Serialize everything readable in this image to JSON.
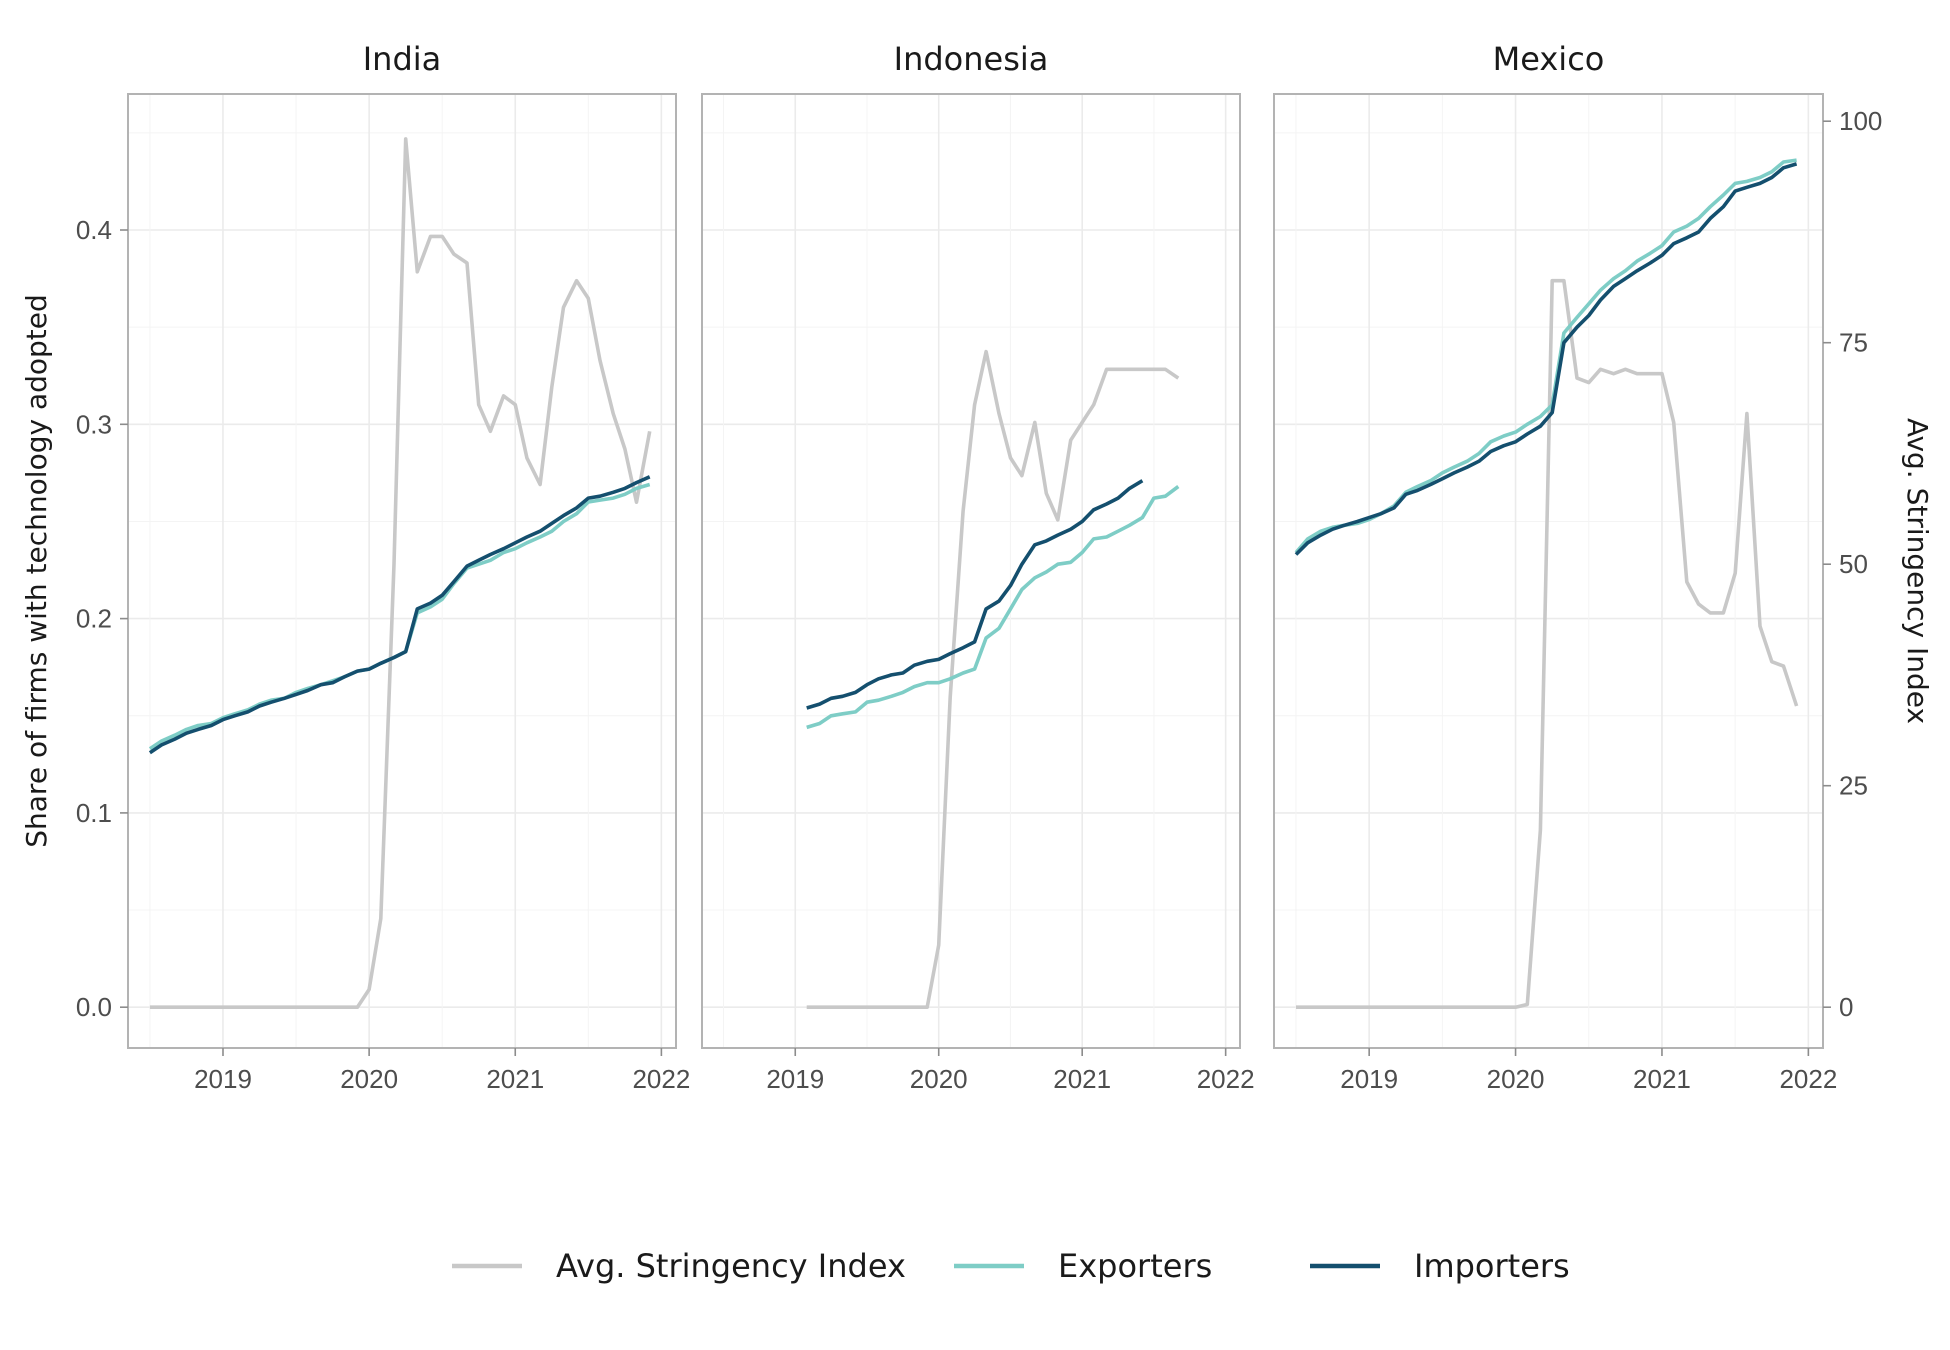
{
  "chart_data": {
    "type": "line",
    "y_left_label": "Share of firms with technology adopted",
    "y_right_label": "Avg. Stringency Index",
    "y_left_range": [
      -0.021,
      0.47
    ],
    "y_left_ticks": [
      "0.0",
      "0.1",
      "0.2",
      "0.3",
      "0.4"
    ],
    "y_right_ticks": [
      "0",
      "25",
      "50",
      "75",
      "100"
    ],
    "y_right_max_for_left": 0.456,
    "x_range": [
      2018.35,
      2022.1
    ],
    "x_ticks": [
      "2019",
      "2020",
      "2021",
      "2022"
    ],
    "grid": true,
    "legend_position": "bottom",
    "colors": {
      "Avg. Stringency Index": "#c8c8c8",
      "Exporters": "#7ecdc6",
      "Importers": "#144f6e"
    },
    "legend": [
      {
        "name": "Avg. Stringency Index",
        "color": "#c8c8c8"
      },
      {
        "name": "Exporters",
        "color": "#7ecdc6"
      },
      {
        "name": "Importers",
        "color": "#144f6e"
      }
    ],
    "panels": [
      {
        "title": "India",
        "series": [
          {
            "name": "Avg. Stringency Index",
            "axis": "right",
            "x": [
              2018.5,
              2019.0,
              2019.5,
              2019.92,
              2020.0,
              2020.08,
              2020.17,
              2020.25,
              2020.33,
              2020.42,
              2020.5,
              2020.58,
              2020.67,
              2020.75,
              2020.83,
              2020.92,
              2021.0,
              2021.08,
              2021.17,
              2021.25,
              2021.33,
              2021.42,
              2021.5,
              2021.58,
              2021.67,
              2021.75,
              2021.83,
              2021.92
            ],
            "y": [
              0,
              0,
              0,
              0,
              2,
              10,
              50,
              98,
              83,
              87,
              87,
              85,
              84,
              68,
              65,
              69,
              68,
              62,
              59,
              70,
              79,
              82,
              80,
              73,
              67,
              63,
              57,
              65
            ]
          },
          {
            "name": "Exporters",
            "axis": "left",
            "x": [
              2018.5,
              2018.58,
              2018.67,
              2018.75,
              2018.83,
              2018.92,
              2019.0,
              2019.08,
              2019.17,
              2019.25,
              2019.33,
              2019.42,
              2019.5,
              2019.58,
              2019.67,
              2019.75,
              2019.83,
              2019.92,
              2020.0,
              2020.08,
              2020.17,
              2020.25,
              2020.33,
              2020.42,
              2020.5,
              2020.58,
              2020.67,
              2020.75,
              2020.83,
              2020.92,
              2021.0,
              2021.08,
              2021.17,
              2021.25,
              2021.33,
              2021.42,
              2021.5,
              2021.58,
              2021.67,
              2021.75,
              2021.83,
              2021.92
            ],
            "y": [
              0.133,
              0.137,
              0.14,
              0.143,
              0.145,
              0.146,
              0.149,
              0.151,
              0.153,
              0.156,
              0.158,
              0.159,
              0.162,
              0.164,
              0.166,
              0.168,
              0.17,
              0.173,
              0.174,
              0.177,
              0.18,
              0.183,
              0.203,
              0.206,
              0.21,
              0.218,
              0.226,
              0.228,
              0.23,
              0.234,
              0.236,
              0.239,
              0.242,
              0.245,
              0.25,
              0.254,
              0.26,
              0.261,
              0.262,
              0.264,
              0.267,
              0.269
            ]
          },
          {
            "name": "Importers",
            "axis": "left",
            "x": [
              2018.5,
              2018.58,
              2018.67,
              2018.75,
              2018.83,
              2018.92,
              2019.0,
              2019.08,
              2019.17,
              2019.25,
              2019.33,
              2019.42,
              2019.5,
              2019.58,
              2019.67,
              2019.75,
              2019.83,
              2019.92,
              2020.0,
              2020.08,
              2020.17,
              2020.25,
              2020.33,
              2020.42,
              2020.5,
              2020.58,
              2020.67,
              2020.75,
              2020.83,
              2020.92,
              2021.0,
              2021.08,
              2021.17,
              2021.25,
              2021.33,
              2021.42,
              2021.5,
              2021.58,
              2021.67,
              2021.75,
              2021.83,
              2021.92
            ],
            "y": [
              0.131,
              0.135,
              0.138,
              0.141,
              0.143,
              0.145,
              0.148,
              0.15,
              0.152,
              0.155,
              0.157,
              0.159,
              0.161,
              0.163,
              0.166,
              0.167,
              0.17,
              0.173,
              0.174,
              0.177,
              0.18,
              0.183,
              0.205,
              0.208,
              0.212,
              0.219,
              0.227,
              0.23,
              0.233,
              0.236,
              0.239,
              0.242,
              0.245,
              0.249,
              0.253,
              0.257,
              0.262,
              0.263,
              0.265,
              0.267,
              0.27,
              0.273
            ]
          }
        ]
      },
      {
        "title": "Indonesia",
        "series": [
          {
            "name": "Avg. Stringency Index",
            "axis": "right",
            "x": [
              2019.08,
              2019.5,
              2019.92,
              2020.0,
              2020.08,
              2020.17,
              2020.25,
              2020.33,
              2020.42,
              2020.5,
              2020.58,
              2020.67,
              2020.75,
              2020.83,
              2020.92,
              2021.0,
              2021.08,
              2021.17,
              2021.25,
              2021.33,
              2021.42,
              2021.5,
              2021.58,
              2021.67
            ],
            "y": [
              0,
              0,
              0,
              7,
              35,
              56,
              68,
              74,
              67,
              62,
              60,
              66,
              58,
              55,
              64,
              66,
              68,
              72,
              72,
              72,
              72,
              72,
              72,
              71
            ]
          },
          {
            "name": "Exporters",
            "axis": "left",
            "x": [
              2019.08,
              2019.17,
              2019.25,
              2019.33,
              2019.42,
              2019.5,
              2019.58,
              2019.67,
              2019.75,
              2019.83,
              2019.92,
              2020.0,
              2020.08,
              2020.17,
              2020.25,
              2020.33,
              2020.42,
              2020.5,
              2020.58,
              2020.67,
              2020.75,
              2020.83,
              2020.92,
              2021.0,
              2021.08,
              2021.17,
              2021.25,
              2021.33,
              2021.42,
              2021.5,
              2021.58,
              2021.67
            ],
            "y": [
              0.144,
              0.146,
              0.15,
              0.151,
              0.152,
              0.157,
              0.158,
              0.16,
              0.162,
              0.165,
              0.167,
              0.167,
              0.169,
              0.172,
              0.174,
              0.19,
              0.195,
              0.205,
              0.215,
              0.221,
              0.224,
              0.228,
              0.229,
              0.234,
              0.241,
              0.242,
              0.245,
              0.248,
              0.252,
              0.262,
              0.263,
              0.268
            ]
          },
          {
            "name": "Importers",
            "axis": "left",
            "x": [
              2019.08,
              2019.17,
              2019.25,
              2019.33,
              2019.42,
              2019.5,
              2019.58,
              2019.67,
              2019.75,
              2019.83,
              2019.92,
              2020.0,
              2020.08,
              2020.17,
              2020.25,
              2020.33,
              2020.42,
              2020.5,
              2020.58,
              2020.67,
              2020.75,
              2020.83,
              2020.92,
              2021.0,
              2021.08,
              2021.17,
              2021.25,
              2021.33,
              2021.42
            ],
            "y": [
              0.154,
              0.156,
              0.159,
              0.16,
              0.162,
              0.166,
              0.169,
              0.171,
              0.172,
              0.176,
              0.178,
              0.179,
              0.182,
              0.185,
              0.188,
              0.205,
              0.209,
              0.217,
              0.228,
              0.238,
              0.24,
              0.243,
              0.246,
              0.25,
              0.256,
              0.259,
              0.262,
              0.267,
              0.271
            ]
          }
        ]
      },
      {
        "title": "Mexico",
        "series": [
          {
            "name": "Avg. Stringency Index",
            "axis": "right",
            "x": [
              2018.5,
              2019.0,
              2019.5,
              2020.0,
              2020.08,
              2020.17,
              2020.25,
              2020.33,
              2020.42,
              2020.5,
              2020.58,
              2020.67,
              2020.75,
              2020.83,
              2020.92,
              2021.0,
              2021.08,
              2021.17,
              2021.25,
              2021.33,
              2021.42,
              2021.5,
              2021.58,
              2021.67,
              2021.75,
              2021.83,
              2021.92
            ],
            "y": [
              0,
              0,
              0,
              0,
              0.3,
              20,
              82,
              82,
              71,
              70.5,
              72,
              71.5,
              72,
              71.5,
              71.5,
              71.5,
              66,
              48,
              45.5,
              44.5,
              44.5,
              49,
              67,
              43,
              39,
              38.5,
              34
            ]
          },
          {
            "name": "Exporters",
            "axis": "left",
            "x": [
              2018.5,
              2018.58,
              2018.67,
              2018.75,
              2018.83,
              2018.92,
              2019.0,
              2019.08,
              2019.17,
              2019.25,
              2019.33,
              2019.42,
              2019.5,
              2019.58,
              2019.67,
              2019.75,
              2019.83,
              2019.92,
              2020.0,
              2020.08,
              2020.17,
              2020.25,
              2020.33,
              2020.42,
              2020.5,
              2020.58,
              2020.67,
              2020.75,
              2020.83,
              2020.92,
              2021.0,
              2021.08,
              2021.17,
              2021.25,
              2021.33,
              2021.42,
              2021.5,
              2021.58,
              2021.67,
              2021.75,
              2021.83,
              2021.92
            ],
            "y": [
              0.234,
              0.241,
              0.245,
              0.247,
              0.248,
              0.249,
              0.251,
              0.254,
              0.258,
              0.265,
              0.268,
              0.271,
              0.275,
              0.278,
              0.281,
              0.285,
              0.291,
              0.294,
              0.296,
              0.3,
              0.304,
              0.31,
              0.347,
              0.355,
              0.362,
              0.369,
              0.375,
              0.379,
              0.384,
              0.388,
              0.392,
              0.399,
              0.402,
              0.406,
              0.412,
              0.418,
              0.424,
              0.425,
              0.427,
              0.43,
              0.435,
              0.436
            ]
          },
          {
            "name": "Importers",
            "axis": "left",
            "x": [
              2018.5,
              2018.58,
              2018.67,
              2018.75,
              2018.83,
              2018.92,
              2019.0,
              2019.08,
              2019.17,
              2019.25,
              2019.33,
              2019.42,
              2019.5,
              2019.58,
              2019.67,
              2019.75,
              2019.83,
              2019.92,
              2020.0,
              2020.08,
              2020.17,
              2020.25,
              2020.33,
              2020.42,
              2020.5,
              2020.58,
              2020.67,
              2020.75,
              2020.83,
              2020.92,
              2021.0,
              2021.08,
              2021.17,
              2021.25,
              2021.33,
              2021.42,
              2021.5,
              2021.58,
              2021.67,
              2021.75,
              2021.83,
              2021.92
            ],
            "y": [
              0.233,
              0.239,
              0.243,
              0.246,
              0.248,
              0.25,
              0.252,
              0.254,
              0.257,
              0.264,
              0.266,
              0.269,
              0.272,
              0.275,
              0.278,
              0.281,
              0.286,
              0.289,
              0.291,
              0.295,
              0.299,
              0.306,
              0.342,
              0.35,
              0.356,
              0.364,
              0.371,
              0.375,
              0.379,
              0.383,
              0.387,
              0.393,
              0.396,
              0.399,
              0.406,
              0.412,
              0.42,
              0.422,
              0.424,
              0.427,
              0.432,
              0.434
            ]
          }
        ]
      }
    ]
  }
}
